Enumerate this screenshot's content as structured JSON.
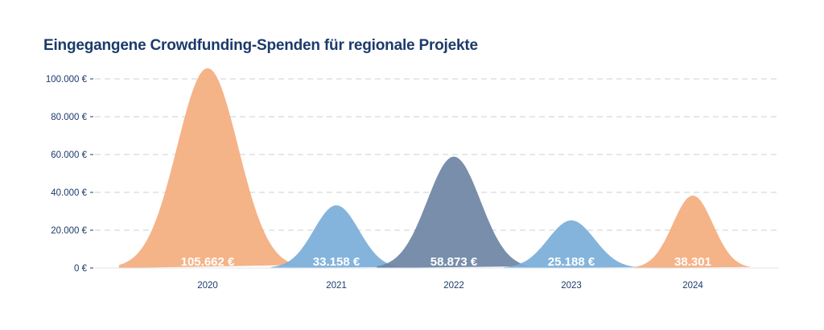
{
  "chart_data": {
    "type": "area",
    "title": "Eingegangene Crowdfunding-Spenden für regionale Projekte",
    "xlabel": "",
    "ylabel": "",
    "ylim": [
      0,
      100000
    ],
    "y_ticks": [
      {
        "value": 0,
        "label": "0 €"
      },
      {
        "value": 20000,
        "label": "20.000 €"
      },
      {
        "value": 40000,
        "label": "40.000 €"
      },
      {
        "value": 60000,
        "label": "60.000 €"
      },
      {
        "value": 80000,
        "label": "80.000 €"
      },
      {
        "value": 100000,
        "label": "100.000 €"
      }
    ],
    "grid": true,
    "categories": [
      "2020",
      "2021",
      "2022",
      "2023",
      "2024"
    ],
    "values": [
      105662,
      33158,
      58873,
      25188,
      38301
    ],
    "value_labels": [
      "105.662 €",
      "33.158 €",
      "58.873 €",
      "25.188 €",
      "38.301"
    ],
    "colors": [
      "#f4ad7e",
      "#7aaed9",
      "#6d84a3",
      "#7aaed9",
      "#f4ad7e"
    ],
    "axis_color": "#1c3a6b",
    "grid_color": "#c9d0da"
  }
}
